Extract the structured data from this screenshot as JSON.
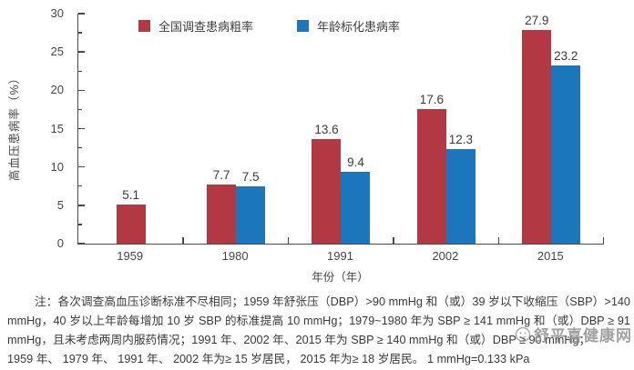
{
  "chart_data": {
    "type": "bar",
    "title": "",
    "categories": [
      "1959",
      "1980",
      "1991",
      "2002",
      "2015"
    ],
    "series": [
      {
        "name": "全国调查患病粗率",
        "color": "#b23944",
        "values": [
          5.1,
          7.7,
          13.6,
          17.6,
          27.9
        ]
      },
      {
        "name": "年龄标化患病率",
        "color": "#1b76bc",
        "values": [
          null,
          7.5,
          9.4,
          12.3,
          23.2
        ]
      }
    ],
    "xlabel": "年份（年）",
    "ylabel": "高血压患病率（%）",
    "ylim": [
      0,
      30
    ],
    "yticks": [
      0,
      5,
      10,
      15,
      20,
      25,
      30
    ],
    "y_minor_step": 2.5,
    "grid": false,
    "legend_position": "top-center",
    "bar_value_labels": [
      "5.1",
      "7.7",
      "7.5",
      "13.6",
      "9.4",
      "17.6",
      "12.3",
      "27.9",
      "23.2"
    ]
  },
  "legend": {
    "items": [
      {
        "label": "全国调查患病粗率",
        "color": "#b23944"
      },
      {
        "label": "年龄标化患病率",
        "color": "#1b76bc"
      }
    ]
  },
  "note": {
    "lines": [
      "注：各次调查高血压诊断标准不尽相同；1959 年舒张压（DBP）>90 mmHg 和（或）39 岁以下收缩压（SBP）>140",
      "mmHg，40 岁以上年龄每增加 10 岁 SBP 的标准提高 10 mmHg；1979~1980 年为 SBP ≥ 141 mmHg 和（或）DBP ≥ 91",
      "mmHg，且未考虑两周内服药情况；1991 年、2002 年、2015 年为 SBP ≥ 140 mmHg 和（或）DBP ≥ 90 mmHg；",
      "1959 年、 1979 年、 1991 年、 2002 年为≥ 15 岁居民， 2015 年为≥ 18 岁居民。 1 mmHg=0.133 kPa"
    ]
  },
  "watermark": {
    "text": "舒平喜健康网"
  }
}
